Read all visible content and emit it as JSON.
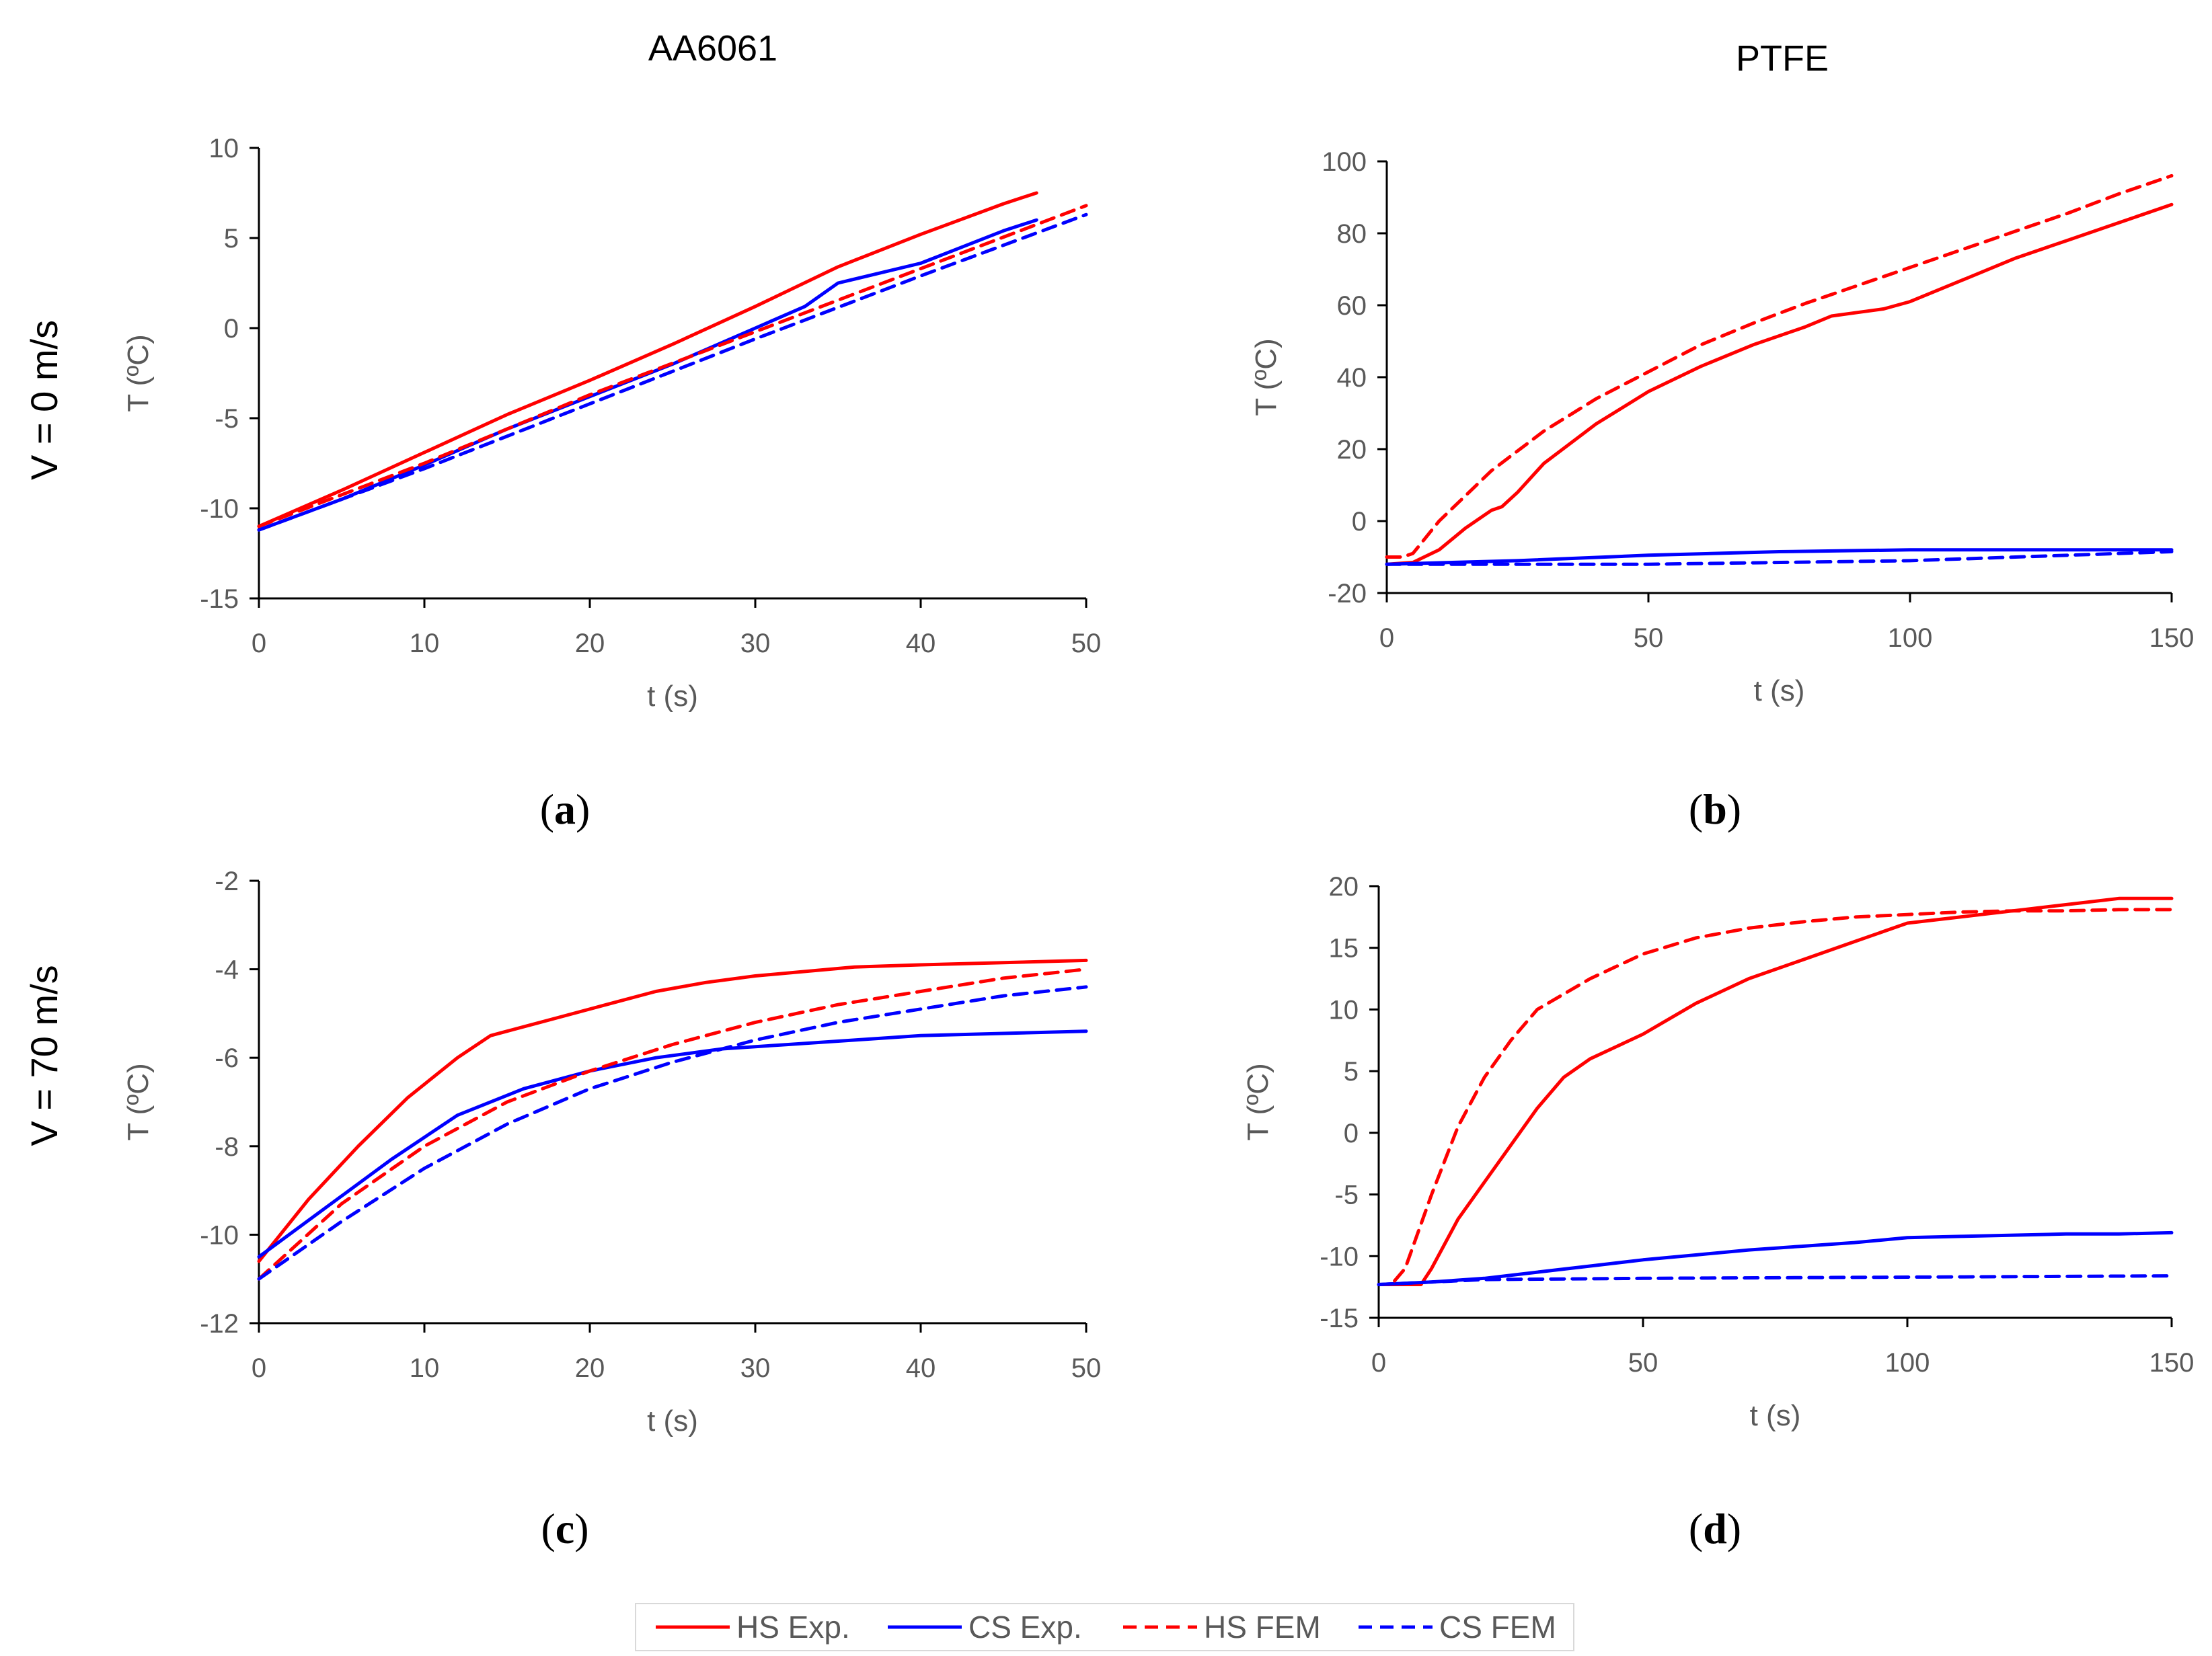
{
  "column_titles": [
    "AA6061",
    "PTFE"
  ],
  "row_titles": [
    "V = 0 m/s",
    "V = 70 m/s"
  ],
  "legend": [
    {
      "label": "HS Exp.",
      "color": "#ff0000",
      "dash": "solid"
    },
    {
      "label": "CS Exp.",
      "color": "#0000ff",
      "dash": "solid"
    },
    {
      "label": "HS FEM",
      "color": "#ff0000",
      "dash": "dashed"
    },
    {
      "label": "CS FEM",
      "color": "#0000ff",
      "dash": "dashed"
    }
  ],
  "chart_data": [
    {
      "panel": "(a)",
      "panel_letter": "a",
      "type": "line",
      "material": "AA6061",
      "velocity": "V = 0 m/s",
      "xlabel": "t (s)",
      "ylabel": "T (ºC)",
      "xlim": [
        0,
        50
      ],
      "ylim": [
        -15,
        10
      ],
      "xticks": [
        0,
        10,
        20,
        30,
        40,
        50
      ],
      "yticks": [
        -15,
        -10,
        -5,
        0,
        5,
        10
      ],
      "series": [
        {
          "name": "HS Exp.",
          "x": [
            0,
            5,
            10,
            15,
            20,
            25,
            30,
            35,
            40,
            45,
            47
          ],
          "y": [
            -11.0,
            -9.0,
            -6.9,
            -4.8,
            -2.9,
            -0.9,
            1.2,
            3.4,
            5.2,
            6.9,
            7.5
          ]
        },
        {
          "name": "CS Exp.",
          "x": [
            0,
            5,
            10,
            15,
            20,
            25,
            30,
            33,
            35,
            40,
            45,
            47
          ],
          "y": [
            -11.2,
            -9.5,
            -7.6,
            -5.6,
            -3.8,
            -2.0,
            0.0,
            1.2,
            2.5,
            3.6,
            5.4,
            6.0
          ]
        },
        {
          "name": "HS FEM",
          "x": [
            0,
            10,
            20,
            30,
            40,
            50
          ],
          "y": [
            -11.0,
            -7.5,
            -3.7,
            -0.2,
            3.3,
            6.8
          ]
        },
        {
          "name": "CS FEM",
          "x": [
            0,
            10,
            20,
            30,
            40,
            50
          ],
          "y": [
            -11.2,
            -7.8,
            -4.2,
            -0.6,
            2.9,
            6.3
          ]
        }
      ]
    },
    {
      "panel": "(b)",
      "panel_letter": "b",
      "type": "line",
      "material": "PTFE",
      "velocity": "V = 0 m/s",
      "xlabel": "t (s)",
      "ylabel": "T (ºC)",
      "xlim": [
        0,
        150
      ],
      "ylim": [
        -20,
        100
      ],
      "xticks": [
        0,
        50,
        100,
        150
      ],
      "yticks": [
        -20,
        0,
        20,
        40,
        60,
        80,
        100
      ],
      "series": [
        {
          "name": "HS Exp.",
          "x": [
            0,
            5,
            10,
            15,
            20,
            22,
            25,
            30,
            40,
            50,
            60,
            70,
            80,
            85,
            90,
            95,
            100,
            110,
            120,
            130,
            140,
            150
          ],
          "y": [
            -12,
            -11.5,
            -8,
            -2,
            3,
            4,
            8,
            16,
            27,
            36,
            43,
            49,
            54,
            57,
            58,
            59,
            61,
            67,
            73,
            78,
            83,
            88
          ]
        },
        {
          "name": "CS Exp.",
          "x": [
            0,
            25,
            50,
            75,
            100,
            125,
            150
          ],
          "y": [
            -12,
            -11,
            -9.5,
            -8.5,
            -8,
            -8,
            -8
          ]
        },
        {
          "name": "HS FEM",
          "x": [
            0,
            3,
            5,
            10,
            20,
            30,
            40,
            50,
            60,
            70,
            80,
            90,
            100,
            110,
            120,
            130,
            140,
            150
          ],
          "y": [
            -10,
            -10,
            -9,
            0,
            14,
            25,
            34,
            41.5,
            49,
            55,
            60.5,
            65.5,
            70.5,
            75.5,
            80.5,
            85.5,
            91,
            96
          ]
        },
        {
          "name": "CS FEM",
          "x": [
            0,
            50,
            100,
            150
          ],
          "y": [
            -12,
            -12,
            -11,
            -8.5
          ]
        }
      ]
    },
    {
      "panel": "(c)",
      "panel_letter": "c",
      "type": "line",
      "material": "AA6061",
      "velocity": "V = 70 m/s",
      "xlabel": "t (s)",
      "ylabel": "T (ºC)",
      "xlim": [
        0,
        50
      ],
      "ylim": [
        -12,
        -2
      ],
      "xticks": [
        0,
        10,
        20,
        30,
        40,
        50
      ],
      "yticks": [
        -12,
        -10,
        -8,
        -6,
        -4,
        -2
      ],
      "series": [
        {
          "name": "HS Exp.",
          "x": [
            0,
            3,
            6,
            9,
            12,
            14,
            15,
            18,
            21,
            24,
            27,
            30,
            33,
            36,
            40,
            45,
            50
          ],
          "y": [
            -10.6,
            -9.2,
            -8.0,
            -6.9,
            -6.0,
            -5.5,
            -5.4,
            -5.1,
            -4.8,
            -4.5,
            -4.3,
            -4.15,
            -4.05,
            -3.95,
            -3.9,
            -3.85,
            -3.8
          ]
        },
        {
          "name": "CS Exp.",
          "x": [
            0,
            4,
            8,
            12,
            16,
            20,
            24,
            28,
            32,
            36,
            40,
            45,
            50
          ],
          "y": [
            -10.5,
            -9.4,
            -8.3,
            -7.3,
            -6.7,
            -6.3,
            -6.0,
            -5.8,
            -5.7,
            -5.6,
            -5.5,
            -5.45,
            -5.4
          ]
        },
        {
          "name": "HS FEM",
          "x": [
            0,
            5,
            10,
            15,
            20,
            25,
            30,
            35,
            40,
            45,
            50
          ],
          "y": [
            -11.0,
            -9.3,
            -8.0,
            -7.0,
            -6.3,
            -5.7,
            -5.2,
            -4.8,
            -4.5,
            -4.2,
            -4.0
          ]
        },
        {
          "name": "CS FEM",
          "x": [
            0,
            5,
            10,
            15,
            20,
            25,
            30,
            35,
            40,
            45,
            50
          ],
          "y": [
            -11.0,
            -9.7,
            -8.5,
            -7.5,
            -6.7,
            -6.1,
            -5.6,
            -5.2,
            -4.9,
            -4.6,
            -4.4
          ]
        }
      ]
    },
    {
      "panel": "(d)",
      "panel_letter": "d",
      "type": "line",
      "material": "PTFE",
      "velocity": "V = 70 m/s",
      "xlabel": "t (s)",
      "ylabel": "T (ºC)",
      "xlim": [
        0,
        150
      ],
      "ylim": [
        -15,
        20
      ],
      "xticks": [
        0,
        50,
        100,
        150
      ],
      "yticks": [
        -15,
        -10,
        -5,
        0,
        5,
        10,
        15,
        20
      ],
      "series": [
        {
          "name": "HS Exp.",
          "x": [
            0,
            8,
            10,
            15,
            20,
            25,
            30,
            35,
            40,
            45,
            50,
            60,
            70,
            80,
            90,
            100,
            110,
            120,
            130,
            140,
            150
          ],
          "y": [
            -12.3,
            -12.3,
            -11,
            -7,
            -4,
            -1,
            2,
            4.5,
            6,
            7,
            8,
            10.5,
            12.5,
            14,
            15.5,
            17,
            17.5,
            18,
            18.5,
            19,
            19
          ]
        },
        {
          "name": "CS Exp.",
          "x": [
            0,
            10,
            20,
            30,
            40,
            50,
            60,
            70,
            80,
            90,
            100,
            110,
            120,
            130,
            140,
            150
          ],
          "y": [
            -12.3,
            -12.1,
            -11.8,
            -11.3,
            -10.8,
            -10.3,
            -9.9,
            -9.5,
            -9.2,
            -8.9,
            -8.5,
            -8.4,
            -8.3,
            -8.2,
            -8.2,
            -8.1
          ]
        },
        {
          "name": "HS FEM",
          "x": [
            3,
            5,
            10,
            15,
            20,
            25,
            30,
            40,
            50,
            60,
            70,
            80,
            90,
            100,
            110,
            120,
            130,
            140,
            150
          ],
          "y": [
            -12,
            -11,
            -5,
            0.5,
            4.5,
            7.5,
            10,
            12.5,
            14.5,
            15.8,
            16.6,
            17.1,
            17.5,
            17.7,
            17.9,
            18.0,
            18.0,
            18.1,
            18.1
          ]
        },
        {
          "name": "CS FEM",
          "x": [
            0,
            20,
            50,
            100,
            150
          ],
          "y": [
            -12.3,
            -11.9,
            -11.8,
            -11.7,
            -11.6
          ]
        }
      ]
    }
  ]
}
